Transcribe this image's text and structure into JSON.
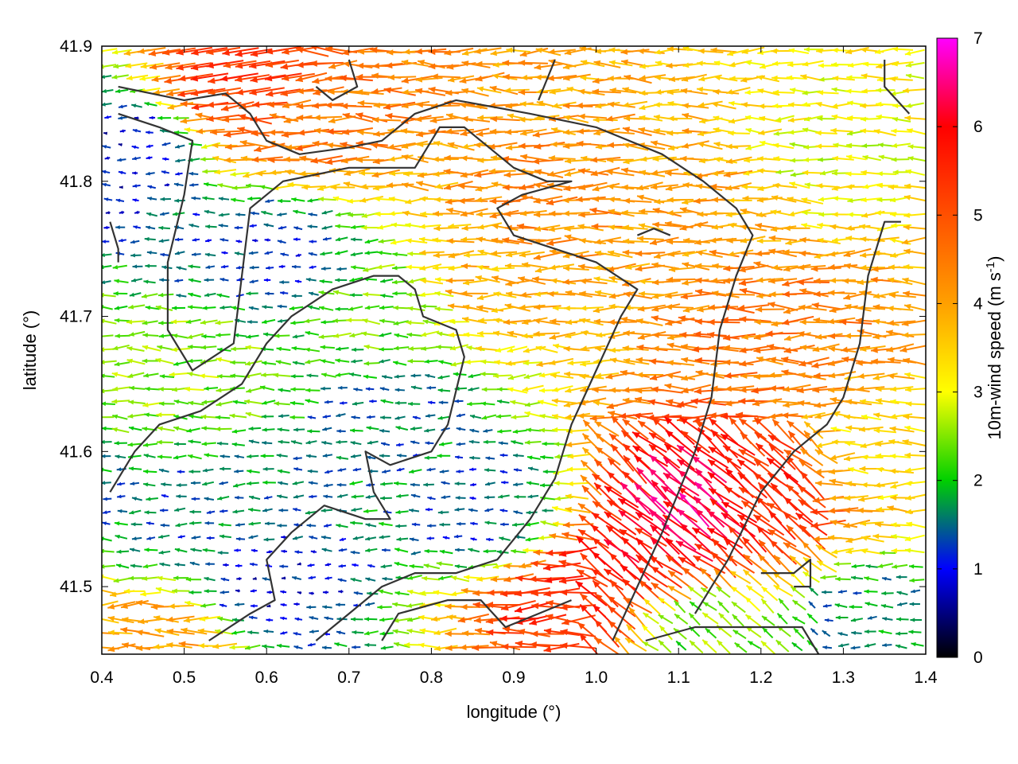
{
  "chart_data": {
    "type": "vector-field",
    "xlabel": "longitude (°)",
    "ylabel": "latitude (°)",
    "colorbar_label": "10m-wind speed (m s",
    "colorbar_label_sup": "-1",
    "colorbar_label_end": ")",
    "xlim": [
      0.4,
      1.4
    ],
    "ylim": [
      41.45,
      41.9
    ],
    "x_ticks": [
      "0.4",
      "0.5",
      "0.6",
      "0.7",
      "0.8",
      "0.9",
      "1.0",
      "1.1",
      "1.2",
      "1.3",
      "1.4"
    ],
    "x_tick_values": [
      0.4,
      0.5,
      0.6,
      0.7,
      0.8,
      0.9,
      1.0,
      1.1,
      1.2,
      1.3,
      1.4
    ],
    "y_ticks": [
      "41.5",
      "41.6",
      "41.7",
      "41.8",
      "41.9"
    ],
    "y_tick_values": [
      41.5,
      41.6,
      41.7,
      41.8,
      41.9
    ],
    "colorbar_ticks": [
      "0",
      "1",
      "2",
      "3",
      "4",
      "5",
      "6",
      "7"
    ],
    "colorbar_range": [
      0,
      7
    ],
    "colormap": [
      "#000000",
      "#0000ff",
      "#00d000",
      "#ffff00",
      "#ffa000",
      "#ff5000",
      "#ff0000",
      "#ff00ff"
    ],
    "grid": false,
    "wind_direction": "mostly from east (arrows point west)",
    "speed_regions": [
      {
        "lon": 0.95,
        "lat": 41.78,
        "speed": 4.3
      },
      {
        "lon": 0.65,
        "lat": 41.84,
        "speed": 4.5
      },
      {
        "lon": 0.58,
        "lat": 41.87,
        "speed": 5.3
      },
      {
        "lon": 1.12,
        "lat": 41.79,
        "speed": 4.0
      },
      {
        "lon": 1.28,
        "lat": 41.82,
        "speed": 3.0
      },
      {
        "lon": 1.22,
        "lat": 41.69,
        "speed": 4.5
      },
      {
        "lon": 0.88,
        "lat": 41.72,
        "speed": 3.8
      },
      {
        "lon": 0.75,
        "lat": 41.7,
        "speed": 2.3
      },
      {
        "lon": 0.75,
        "lat": 41.63,
        "speed": 1.5
      },
      {
        "lon": 0.5,
        "lat": 41.66,
        "speed": 2.5
      },
      {
        "lon": 0.43,
        "lat": 41.82,
        "speed": 0.9
      },
      {
        "lon": 0.6,
        "lat": 41.75,
        "speed": 1.2
      },
      {
        "lon": 0.5,
        "lat": 41.55,
        "speed": 1.5
      },
      {
        "lon": 0.6,
        "lat": 41.5,
        "speed": 1.0
      },
      {
        "lon": 0.87,
        "lat": 41.56,
        "speed": 1.3
      },
      {
        "lon": 1.12,
        "lat": 41.56,
        "speed": 6.3
      },
      {
        "lon": 1.05,
        "lat": 41.52,
        "speed": 5.8
      },
      {
        "lon": 0.98,
        "lat": 41.49,
        "speed": 5.5
      },
      {
        "lon": 1.2,
        "lat": 41.57,
        "speed": 5.5
      },
      {
        "lon": 1.32,
        "lat": 41.47,
        "speed": 1.6
      },
      {
        "lon": 1.12,
        "lat": 41.47,
        "speed": 2.4
      },
      {
        "lon": 0.47,
        "lat": 41.46,
        "speed": 4.0
      },
      {
        "lon": 1.35,
        "lat": 41.6,
        "speed": 3.3
      }
    ],
    "contours": [
      [
        [
          0.42,
          41.87
        ],
        [
          0.5,
          41.86
        ],
        [
          0.55,
          41.865
        ],
        [
          0.58,
          41.85
        ],
        [
          0.6,
          41.83
        ],
        [
          0.64,
          41.82
        ],
        [
          0.7,
          41.825
        ],
        [
          0.74,
          41.83
        ],
        [
          0.78,
          41.85
        ],
        [
          0.83,
          41.86
        ],
        [
          0.92,
          41.85
        ],
        [
          1.0,
          41.84
        ],
        [
          1.08,
          41.82
        ],
        [
          1.13,
          41.8
        ],
        [
          1.17,
          41.78
        ],
        [
          1.19,
          41.76
        ],
        [
          1.17,
          41.73
        ],
        [
          1.15,
          41.69
        ],
        [
          1.14,
          41.64
        ],
        [
          1.12,
          41.6
        ],
        [
          1.1,
          41.57
        ],
        [
          1.08,
          41.54
        ],
        [
          1.05,
          41.5
        ],
        [
          1.02,
          41.46
        ]
      ],
      [
        [
          0.42,
          41.85
        ],
        [
          0.47,
          41.84
        ],
        [
          0.51,
          41.83
        ],
        [
          0.5,
          41.79
        ],
        [
          0.48,
          41.74
        ],
        [
          0.48,
          41.69
        ],
        [
          0.51,
          41.66
        ],
        [
          0.56,
          41.68
        ],
        [
          0.57,
          41.73
        ],
        [
          0.58,
          41.78
        ],
        [
          0.62,
          41.8
        ],
        [
          0.7,
          41.81
        ],
        [
          0.78,
          41.81
        ],
        [
          0.81,
          41.84
        ],
        [
          0.84,
          41.84
        ],
        [
          0.9,
          41.81
        ],
        [
          0.94,
          41.8
        ],
        [
          0.97,
          41.8
        ],
        [
          0.91,
          41.79
        ],
        [
          0.88,
          41.78
        ],
        [
          0.9,
          41.76
        ],
        [
          0.95,
          41.75
        ],
        [
          1.0,
          41.74
        ],
        [
          1.05,
          41.72
        ],
        [
          1.03,
          41.7
        ],
        [
          1.0,
          41.66
        ],
        [
          0.97,
          41.62
        ],
        [
          0.95,
          41.58
        ],
        [
          0.92,
          41.55
        ],
        [
          0.88,
          41.52
        ],
        [
          0.83,
          41.51
        ],
        [
          0.78,
          41.51
        ],
        [
          0.74,
          41.5
        ],
        [
          0.7,
          41.48
        ],
        [
          0.66,
          41.46
        ]
      ],
      [
        [
          0.41,
          41.57
        ],
        [
          0.44,
          41.6
        ],
        [
          0.47,
          41.62
        ],
        [
          0.52,
          41.63
        ],
        [
          0.57,
          41.65
        ],
        [
          0.6,
          41.68
        ],
        [
          0.63,
          41.7
        ],
        [
          0.68,
          41.72
        ],
        [
          0.73,
          41.73
        ],
        [
          0.76,
          41.73
        ],
        [
          0.78,
          41.72
        ],
        [
          0.79,
          41.7
        ],
        [
          0.83,
          41.69
        ],
        [
          0.84,
          41.67
        ],
        [
          0.82,
          41.62
        ],
        [
          0.8,
          41.6
        ],
        [
          0.75,
          41.59
        ],
        [
          0.72,
          41.6
        ],
        [
          0.73,
          41.57
        ],
        [
          0.75,
          41.55
        ],
        [
          0.72,
          41.55
        ],
        [
          0.67,
          41.56
        ],
        [
          0.63,
          41.54
        ],
        [
          0.6,
          41.52
        ],
        [
          0.61,
          41.49
        ],
        [
          0.58,
          41.48
        ],
        [
          0.53,
          41.46
        ]
      ],
      [
        [
          0.74,
          41.46
        ],
        [
          0.76,
          41.48
        ],
        [
          0.82,
          41.49
        ],
        [
          0.86,
          41.49
        ],
        [
          0.89,
          41.47
        ],
        [
          0.93,
          41.48
        ],
        [
          0.97,
          41.49
        ]
      ],
      [
        [
          1.06,
          41.46
        ],
        [
          1.12,
          41.47
        ],
        [
          1.18,
          41.47
        ],
        [
          1.22,
          41.47
        ],
        [
          1.25,
          41.47
        ],
        [
          1.27,
          41.45
        ]
      ],
      [
        [
          1.2,
          41.51
        ],
        [
          1.24,
          41.51
        ],
        [
          1.26,
          41.52
        ],
        [
          1.26,
          41.5
        ],
        [
          1.25,
          41.5
        ],
        [
          1.24,
          41.5
        ]
      ],
      [
        [
          1.37,
          41.77
        ],
        [
          1.35,
          41.77
        ],
        [
          1.33,
          41.73
        ],
        [
          1.32,
          41.68
        ],
        [
          1.3,
          41.64
        ],
        [
          1.28,
          41.62
        ],
        [
          1.24,
          41.6
        ],
        [
          1.2,
          41.57
        ],
        [
          1.16,
          41.52
        ],
        [
          1.12,
          41.48
        ]
      ],
      [
        [
          1.05,
          41.76
        ],
        [
          1.07,
          41.765
        ],
        [
          1.09,
          41.76
        ]
      ],
      [
        [
          1.35,
          41.89
        ],
        [
          1.35,
          41.87
        ],
        [
          1.38,
          41.85
        ]
      ],
      [
        [
          0.7,
          41.89
        ],
        [
          0.71,
          41.87
        ],
        [
          0.68,
          41.86
        ],
        [
          0.66,
          41.87
        ]
      ],
      [
        [
          0.93,
          41.86
        ],
        [
          0.95,
          41.89
        ]
      ],
      [
        [
          0.41,
          41.77
        ],
        [
          0.42,
          41.75
        ],
        [
          0.42,
          41.74
        ]
      ]
    ]
  }
}
